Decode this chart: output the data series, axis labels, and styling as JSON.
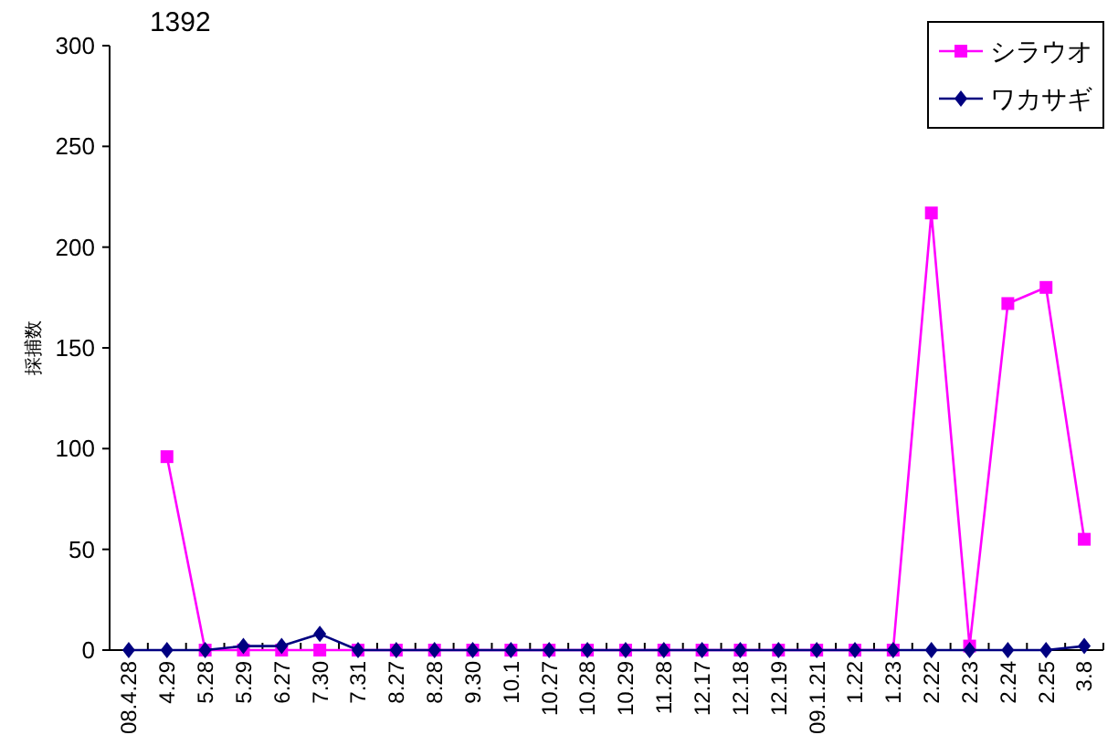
{
  "chart_data": {
    "type": "line",
    "ylabel": "採捕数",
    "categories": [
      "08.4.28",
      "4.29",
      "5.28",
      "5.29",
      "6.27",
      "7.30",
      "7.31",
      "8.27",
      "8.28",
      "9.30",
      "10.1",
      "10.27",
      "10.28",
      "10.29",
      "11.28",
      "12.17",
      "12.18",
      "12.19",
      "09.1.21",
      "1.22",
      "1.23",
      "2.22",
      "2.23",
      "2.24",
      "2.25",
      "3.8"
    ],
    "series": [
      {
        "name": "シラウオ",
        "color": "#ff00ff",
        "marker": "square",
        "values": [
          null,
          96,
          0,
          0,
          0,
          0,
          0,
          0,
          0,
          0,
          0,
          0,
          0,
          0,
          0,
          0,
          0,
          0,
          0,
          0,
          0,
          217,
          2,
          172,
          180,
          55
        ]
      },
      {
        "name": "ワカサギ",
        "color": "#000080",
        "marker": "diamond",
        "values": [
          0,
          0,
          0,
          2,
          2,
          8,
          0,
          0,
          0,
          0,
          0,
          0,
          0,
          0,
          0,
          0,
          0,
          0,
          0,
          0,
          0,
          0,
          0,
          0,
          0,
          2
        ]
      }
    ],
    "annotations": [
      "1392"
    ],
    "ylim": [
      0,
      300
    ],
    "yticks": [
      0,
      50,
      100,
      150,
      200,
      250,
      300
    ],
    "grid": false,
    "legend": "top right",
    "line_style": "solid"
  }
}
